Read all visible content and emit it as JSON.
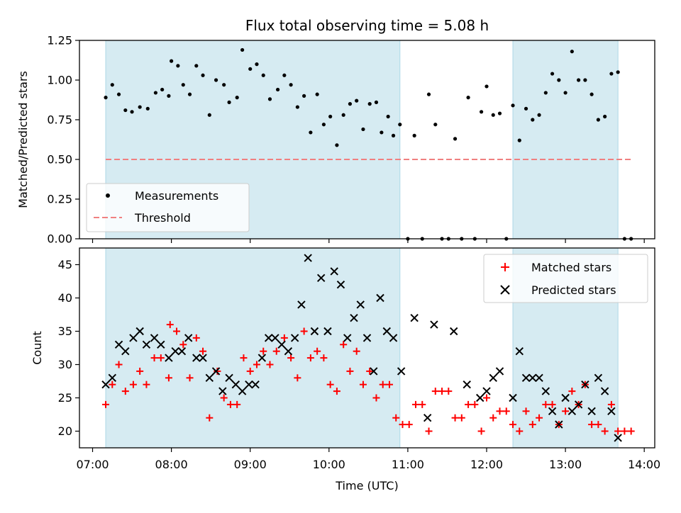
{
  "title": "Flux total observing time = 5.08 h",
  "xlabel": "Time (UTC)",
  "x_ticks": [
    "07:00",
    "08:00",
    "09:00",
    "10:00",
    "11:00",
    "12:00",
    "13:00",
    "14:00"
  ],
  "chart_data": [
    {
      "type": "scatter",
      "title": "Flux total observing time = 5.08 h",
      "xlabel": "",
      "ylabel": "Matched/Predicted stars",
      "xlim": [
        "06:50",
        "14:08"
      ],
      "ylim": [
        0,
        1.25
      ],
      "y_ticks": [
        "0.00",
        "0.25",
        "0.50",
        "0.75",
        "1.00",
        "1.25"
      ],
      "shaded_intervals": [
        [
          "07:10",
          "10:54"
        ],
        [
          "12:20",
          "13:40"
        ]
      ],
      "shade_color": "#add8e6",
      "legend": {
        "placement": "lower-left",
        "entries": [
          "Measurements",
          "Threshold"
        ]
      },
      "threshold": {
        "name": "Threshold",
        "y": 0.5,
        "x_range": [
          "07:10",
          "13:50"
        ],
        "color": "#f08080"
      },
      "series": [
        {
          "name": "Measurements",
          "color": "#000000",
          "points": [
            [
              "07:10",
              0.89
            ],
            [
              "07:15",
              0.97
            ],
            [
              "07:20",
              0.91
            ],
            [
              "07:25",
              0.81
            ],
            [
              "07:30",
              0.8
            ],
            [
              "07:36",
              0.83
            ],
            [
              "07:42",
              0.82
            ],
            [
              "07:48",
              0.92
            ],
            [
              "07:53",
              0.94
            ],
            [
              "07:58",
              0.9
            ],
            [
              "08:00",
              1.12
            ],
            [
              "08:05",
              1.09
            ],
            [
              "08:09",
              0.97
            ],
            [
              "08:14",
              0.91
            ],
            [
              "08:19",
              1.09
            ],
            [
              "08:24",
              1.03
            ],
            [
              "08:29",
              0.78
            ],
            [
              "08:34",
              1.0
            ],
            [
              "08:40",
              0.97
            ],
            [
              "08:44",
              0.86
            ],
            [
              "08:50",
              0.89
            ],
            [
              "08:54",
              1.19
            ],
            [
              "09:00",
              1.07
            ],
            [
              "09:05",
              1.1
            ],
            [
              "09:10",
              1.03
            ],
            [
              "09:15",
              0.88
            ],
            [
              "09:21",
              0.94
            ],
            [
              "09:26",
              1.03
            ],
            [
              "09:31",
              0.97
            ],
            [
              "09:36",
              0.83
            ],
            [
              "09:41",
              0.9
            ],
            [
              "09:46",
              0.67
            ],
            [
              "09:51",
              0.91
            ],
            [
              "09:56",
              0.72
            ],
            [
              "10:01",
              0.77
            ],
            [
              "10:06",
              0.59
            ],
            [
              "10:11",
              0.78
            ],
            [
              "10:16",
              0.85
            ],
            [
              "10:21",
              0.87
            ],
            [
              "10:26",
              0.69
            ],
            [
              "10:31",
              0.85
            ],
            [
              "10:36",
              0.86
            ],
            [
              "10:40",
              0.67
            ],
            [
              "10:45",
              0.77
            ],
            [
              "10:49",
              0.65
            ],
            [
              "10:54",
              0.72
            ],
            [
              "11:00",
              0
            ],
            [
              "11:05",
              0.65
            ],
            [
              "11:11",
              0
            ],
            [
              "11:16",
              0.91
            ],
            [
              "11:21",
              0.72
            ],
            [
              "11:26",
              0
            ],
            [
              "11:31",
              0
            ],
            [
              "11:36",
              0.63
            ],
            [
              "11:41",
              0
            ],
            [
              "11:46",
              0.89
            ],
            [
              "11:51",
              0
            ],
            [
              "11:56",
              0.8
            ],
            [
              "12:00",
              0.96
            ],
            [
              "12:05",
              0.78
            ],
            [
              "12:10",
              0.79
            ],
            [
              "12:15",
              0
            ],
            [
              "12:20",
              0.84
            ],
            [
              "12:25",
              0.62
            ],
            [
              "12:30",
              0.82
            ],
            [
              "12:35",
              0.75
            ],
            [
              "12:40",
              0.78
            ],
            [
              "12:45",
              0.92
            ],
            [
              "12:50",
              1.04
            ],
            [
              "12:55",
              1.0
            ],
            [
              "13:00",
              0.92
            ],
            [
              "13:05",
              1.18
            ],
            [
              "13:10",
              1.0
            ],
            [
              "13:15",
              1.0
            ],
            [
              "13:20",
              0.91
            ],
            [
              "13:25",
              0.75
            ],
            [
              "13:30",
              0.77
            ],
            [
              "13:35",
              1.04
            ],
            [
              "13:40",
              1.05
            ],
            [
              "13:45",
              0
            ],
            [
              "13:50",
              0
            ]
          ]
        }
      ]
    },
    {
      "type": "scatter",
      "title": "",
      "xlabel": "Time (UTC)",
      "ylabel": "Count",
      "xlim": [
        "06:50",
        "14:08"
      ],
      "ylim": [
        17.5,
        47.5
      ],
      "y_ticks": [
        "20",
        "25",
        "30",
        "35",
        "40",
        "45"
      ],
      "shaded_intervals": [
        [
          "07:10",
          "10:54"
        ],
        [
          "12:20",
          "13:40"
        ]
      ],
      "shade_color": "#add8e6",
      "legend": {
        "placement": "top-right",
        "entries": [
          "Matched stars",
          "Predicted stars"
        ]
      },
      "series": [
        {
          "name": "Matched stars",
          "marker": "plus",
          "color": "#ff0000",
          "points": [
            [
              "07:10",
              24
            ],
            [
              "07:15",
              27
            ],
            [
              "07:20",
              30
            ],
            [
              "07:25",
              26
            ],
            [
              "07:31",
              27
            ],
            [
              "07:36",
              29
            ],
            [
              "07:41",
              27
            ],
            [
              "07:47",
              31
            ],
            [
              "07:52",
              31
            ],
            [
              "07:58",
              28
            ],
            [
              "07:59",
              36
            ],
            [
              "08:04",
              35
            ],
            [
              "08:09",
              33
            ],
            [
              "08:14",
              28
            ],
            [
              "08:19",
              34
            ],
            [
              "08:24",
              32
            ],
            [
              "08:29",
              22
            ],
            [
              "08:35",
              29
            ],
            [
              "08:40",
              25
            ],
            [
              "08:45",
              24
            ],
            [
              "08:50",
              24
            ],
            [
              "08:55",
              31
            ],
            [
              "09:00",
              29
            ],
            [
              "09:05",
              30
            ],
            [
              "09:10",
              32
            ],
            [
              "09:15",
              30
            ],
            [
              "09:20",
              32
            ],
            [
              "09:26",
              34
            ],
            [
              "09:31",
              31
            ],
            [
              "09:36",
              28
            ],
            [
              "09:41",
              35
            ],
            [
              "09:46",
              31
            ],
            [
              "09:51",
              32
            ],
            [
              "09:56",
              31
            ],
            [
              "10:01",
              27
            ],
            [
              "10:06",
              26
            ],
            [
              "10:11",
              33
            ],
            [
              "10:16",
              29
            ],
            [
              "10:21",
              32
            ],
            [
              "10:26",
              27
            ],
            [
              "10:31",
              29
            ],
            [
              "10:36",
              25
            ],
            [
              "10:41",
              27
            ],
            [
              "10:46",
              27
            ],
            [
              "10:51",
              22
            ],
            [
              "10:56",
              21
            ],
            [
              "11:01",
              21
            ],
            [
              "11:06",
              24
            ],
            [
              "11:11",
              24
            ],
            [
              "11:16",
              20
            ],
            [
              "11:21",
              26
            ],
            [
              "11:26",
              26
            ],
            [
              "11:31",
              26
            ],
            [
              "11:36",
              22
            ],
            [
              "11:41",
              22
            ],
            [
              "11:46",
              24
            ],
            [
              "11:51",
              24
            ],
            [
              "11:56",
              20
            ],
            [
              "12:00",
              25
            ],
            [
              "12:05",
              22
            ],
            [
              "12:10",
              23
            ],
            [
              "12:15",
              23
            ],
            [
              "12:20",
              21
            ],
            [
              "12:25",
              20
            ],
            [
              "12:30",
              23
            ],
            [
              "12:35",
              21
            ],
            [
              "12:40",
              22
            ],
            [
              "12:45",
              24
            ],
            [
              "12:50",
              24
            ],
            [
              "12:55",
              21
            ],
            [
              "13:00",
              23
            ],
            [
              "13:05",
              26
            ],
            [
              "13:10",
              24
            ],
            [
              "13:15",
              27
            ],
            [
              "13:20",
              21
            ],
            [
              "13:25",
              21
            ],
            [
              "13:30",
              20
            ],
            [
              "13:35",
              24
            ],
            [
              "13:40",
              20
            ],
            [
              "13:45",
              20
            ],
            [
              "13:50",
              20
            ]
          ]
        },
        {
          "name": "Predicted stars",
          "marker": "x",
          "color": "#000000",
          "points": [
            [
              "07:10",
              27
            ],
            [
              "07:15",
              28
            ],
            [
              "07:20",
              33
            ],
            [
              "07:25",
              32
            ],
            [
              "07:31",
              34
            ],
            [
              "07:36",
              35
            ],
            [
              "07:41",
              33
            ],
            [
              "07:47",
              34
            ],
            [
              "07:52",
              33
            ],
            [
              "07:58",
              31
            ],
            [
              "08:03",
              32
            ],
            [
              "08:08",
              32
            ],
            [
              "08:13",
              34
            ],
            [
              "08:19",
              31
            ],
            [
              "08:24",
              31
            ],
            [
              "08:29",
              28
            ],
            [
              "08:34",
              29
            ],
            [
              "08:39",
              26
            ],
            [
              "08:44",
              28
            ],
            [
              "08:49",
              27
            ],
            [
              "08:54",
              26
            ],
            [
              "08:59",
              27
            ],
            [
              "09:04",
              27
            ],
            [
              "09:09",
              31
            ],
            [
              "09:14",
              34
            ],
            [
              "09:19",
              34
            ],
            [
              "09:24",
              33
            ],
            [
              "09:29",
              32
            ],
            [
              "09:34",
              34
            ],
            [
              "09:39",
              39
            ],
            [
              "09:44",
              46
            ],
            [
              "09:49",
              35
            ],
            [
              "09:54",
              43
            ],
            [
              "09:59",
              35
            ],
            [
              "10:04",
              44
            ],
            [
              "10:09",
              42
            ],
            [
              "10:14",
              34
            ],
            [
              "10:19",
              37
            ],
            [
              "10:24",
              39
            ],
            [
              "10:29",
              34
            ],
            [
              "10:34",
              29
            ],
            [
              "10:39",
              40
            ],
            [
              "10:44",
              35
            ],
            [
              "10:49",
              34
            ],
            [
              "10:55",
              29
            ],
            [
              "11:05",
              37
            ],
            [
              "11:15",
              22
            ],
            [
              "11:20",
              36
            ],
            [
              "11:35",
              35
            ],
            [
              "11:45",
              27
            ],
            [
              "11:55",
              25
            ],
            [
              "12:00",
              26
            ],
            [
              "12:05",
              28
            ],
            [
              "12:10",
              29
            ],
            [
              "12:20",
              25
            ],
            [
              "12:25",
              32
            ],
            [
              "12:30",
              28
            ],
            [
              "12:35",
              28
            ],
            [
              "12:40",
              28
            ],
            [
              "12:45",
              26
            ],
            [
              "12:50",
              23
            ],
            [
              "12:55",
              21
            ],
            [
              "13:00",
              25
            ],
            [
              "13:05",
              23
            ],
            [
              "13:10",
              24
            ],
            [
              "13:15",
              27
            ],
            [
              "13:20",
              23
            ],
            [
              "13:25",
              28
            ],
            [
              "13:30",
              26
            ],
            [
              "13:35",
              23
            ],
            [
              "13:40",
              19
            ]
          ]
        }
      ]
    }
  ]
}
